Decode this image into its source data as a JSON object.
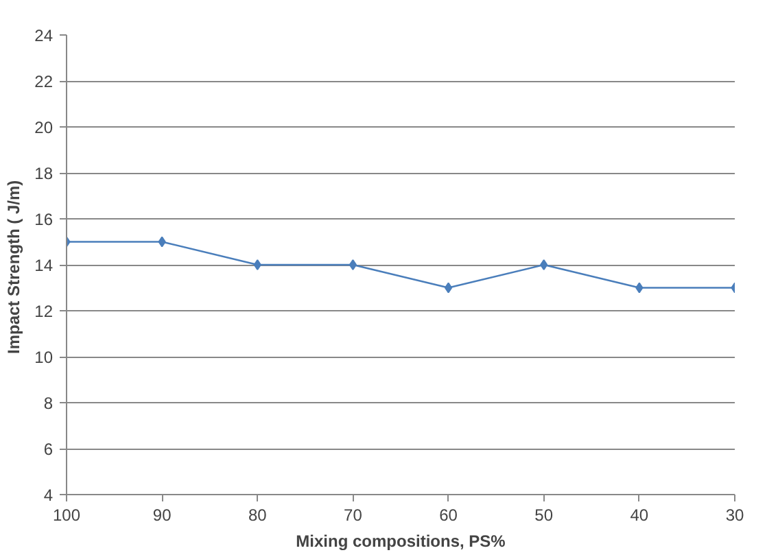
{
  "chart_data": {
    "type": "line",
    "xlabel": "Mixing compositions, PS%",
    "ylabel": "Impact  Strength ( J/m)",
    "categories": [
      "100",
      "90",
      "80",
      "70",
      "60",
      "50",
      "40",
      "30"
    ],
    "series": [
      {
        "color": "#4a7ebb",
        "values": [
          15,
          15,
          14,
          14,
          13,
          14,
          13,
          13
        ]
      }
    ],
    "ylim": [
      4,
      24
    ],
    "yticks": [
      4,
      6,
      8,
      10,
      12,
      14,
      16,
      18,
      20,
      22,
      24
    ],
    "grid": "y",
    "marker": "diamond",
    "line_style": "solid"
  }
}
